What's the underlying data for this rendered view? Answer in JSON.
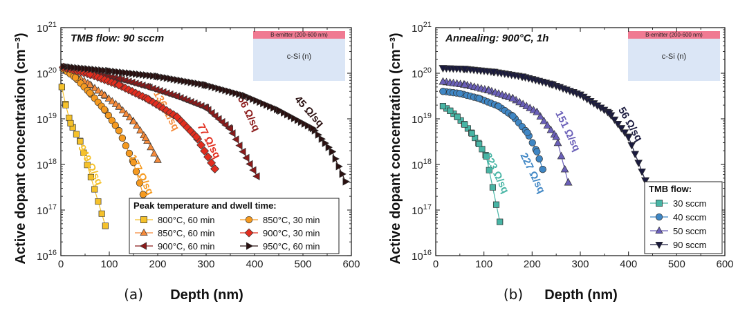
{
  "chart_data": [
    {
      "panel": "(a)",
      "type": "scatter",
      "title": "TMB flow: 90 sccm",
      "xlabel": "Depth (nm)",
      "ylabel": "Active dopant concentration (cm⁻³)",
      "xlim": [
        0,
        600
      ],
      "ylim": [
        1e+16,
        1e+21
      ],
      "yscale": "log",
      "xticks": [
        "0",
        "100",
        "200",
        "300",
        "400",
        "500",
        "600"
      ],
      "yticks_exp": [
        "16",
        "17",
        "18",
        "19",
        "20",
        "21"
      ],
      "inset": {
        "layer_top": "B-emitter (200-600 nm)",
        "layer_bottom": "c-Si (n)"
      },
      "legend": {
        "title": "Peak temperature and dwell time:",
        "columns": 2,
        "position": "bottom-right"
      },
      "series": [
        {
          "name": "800°C, 60 min",
          "color": "#f5c12a",
          "marker": "square",
          "x": [
            2,
            10,
            20,
            40,
            92
          ],
          "y": [
            5e+19,
            2e+19,
            8e+18,
            3.2e+18,
            4.5e+16
          ],
          "sheet": "949 Ω/sq",
          "sheet_pos": [
            55,
            9e+17
          ]
        },
        {
          "name": "850°C, 60 min",
          "color": "#f58a3a",
          "marker": "triangle-up",
          "x": [
            5,
            30,
            60,
            90,
            120,
            150,
            175,
            200
          ],
          "y": [
            1.3e+20,
            9e+19,
            5.6e+19,
            3.3e+19,
            1.85e+19,
            8.8e+18,
            3.8e+18,
            1.25e+18
          ],
          "sheet": "136 Ω/sq",
          "sheet_pos": [
            212,
            1.4e+19
          ]
        },
        {
          "name": "900°C, 60 min",
          "color": "#8b1a1a",
          "marker": "triangle-left",
          "x": [
            5,
            60,
            120,
            180,
            240,
            300,
            350,
            405
          ],
          "y": [
            1.35e+20,
            1.05e+20,
            7.6e+19,
            5e+19,
            3.1e+19,
            1.75e+19,
            6e+18,
            5.5e+17
          ],
          "sheet": "56 Ω/sq",
          "sheet_pos": [
            382,
            1.2e+19
          ]
        },
        {
          "name": "850°C, 30 min",
          "color": "#f59a20",
          "marker": "circle",
          "x": [
            5,
            30,
            60,
            90,
            120,
            150,
            170
          ],
          "y": [
            1.25e+20,
            8e+19,
            3.7e+19,
            1.6e+19,
            5.5e+18,
            1.1e+18,
            2.2e+17
          ],
          "sheet": "177 Ω/sq",
          "sheet_pos": [
            160,
            5.5e+17
          ]
        },
        {
          "name": "900°C, 30 min",
          "color": "#e22d1e",
          "marker": "diamond",
          "x": [
            5,
            60,
            120,
            180,
            240,
            280,
            318
          ],
          "y": [
            1.35e+20,
            9.5e+19,
            5.5e+19,
            2.7e+19,
            1.1e+19,
            4e+18,
            8e+17
          ],
          "sheet": "77 Ω/sq",
          "sheet_pos": [
            300,
            3e+18
          ]
        },
        {
          "name": "950°C, 60 min",
          "color": "#2a1010",
          "marker": "triangle-right",
          "x": [
            5,
            100,
            200,
            300,
            380,
            450,
            520,
            560,
            588
          ],
          "y": [
            1.4e+20,
            1.12e+20,
            8.5e+19,
            5.5e+19,
            3.2e+19,
            1.55e+19,
            6.2e+18,
            1.9e+18,
            4.2e+17
          ],
          "sheet": "45 Ω/sq",
          "sheet_pos": [
            508,
            1.3e+19
          ]
        }
      ]
    },
    {
      "panel": "(b)",
      "type": "scatter",
      "title": "Annealing: 900°C, 1h",
      "xlabel": "Depth (nm)",
      "ylabel": "Active dopant concentration (cm⁻³)",
      "xlim": [
        0,
        600
      ],
      "ylim": [
        1e+16,
        1e+21
      ],
      "yscale": "log",
      "xticks": [
        "0",
        "100",
        "200",
        "300",
        "400",
        "500",
        "600"
      ],
      "yticks_exp": [
        "16",
        "17",
        "18",
        "19",
        "20",
        "21"
      ],
      "inset": {
        "layer_top": "B-emitter (200-600 nm)",
        "layer_bottom": "c-Si (n)"
      },
      "legend": {
        "title": "TMB flow:",
        "columns": 1,
        "position": "bottom-right"
      },
      "series": [
        {
          "name": "30 sccm",
          "color": "#48b5a5",
          "marker": "square",
          "x": [
            15,
            30,
            45,
            60,
            75,
            90,
            105,
            133
          ],
          "y": [
            1.9e+19,
            1.5e+19,
            1.1e+19,
            7.5e+18,
            4.8e+18,
            2.8e+18,
            1.5e+18,
            5.5e+16
          ],
          "sheet": "823 Ω/sq",
          "sheet_pos": [
            120,
            6e+17
          ]
        },
        {
          "name": "40 sccm",
          "color": "#3f86c4",
          "marker": "circle",
          "x": [
            15,
            50,
            90,
            130,
            160,
            190,
            210,
            222
          ],
          "y": [
            4e+19,
            3.6e+19,
            2.8e+19,
            1.9e+19,
            1.15e+19,
            5e+18,
            1.9e+18,
            7.8e+17
          ],
          "sheet": "227 Ω/sq",
          "sheet_pos": [
            195,
            6e+17
          ]
        },
        {
          "name": "50 sccm",
          "color": "#6a5fb8",
          "marker": "triangle-up",
          "x": [
            15,
            60,
            110,
            160,
            210,
            250,
            275
          ],
          "y": [
            6.5e+19,
            5.6e+19,
            4.2e+19,
            2.8e+19,
            1.4e+19,
            4e+18,
            4e+17
          ],
          "sheet": "151 Ω/sq",
          "sheet_pos": [
            268,
            5e+18
          ]
        },
        {
          "name": "90 sccm",
          "color": "#1a1a3e",
          "marker": "triangle-down",
          "x": [
            15,
            60,
            120,
            180,
            240,
            300,
            360,
            400,
            435
          ],
          "y": [
            1.3e+20,
            1.25e+20,
            1.08e+20,
            8.5e+19,
            5.8e+19,
            3.4e+19,
            1.35e+19,
            4e+18,
            4.5e+17
          ],
          "sheet": "56 Ω/sq",
          "sheet_pos": [
            398,
            7e+18
          ]
        }
      ]
    }
  ]
}
